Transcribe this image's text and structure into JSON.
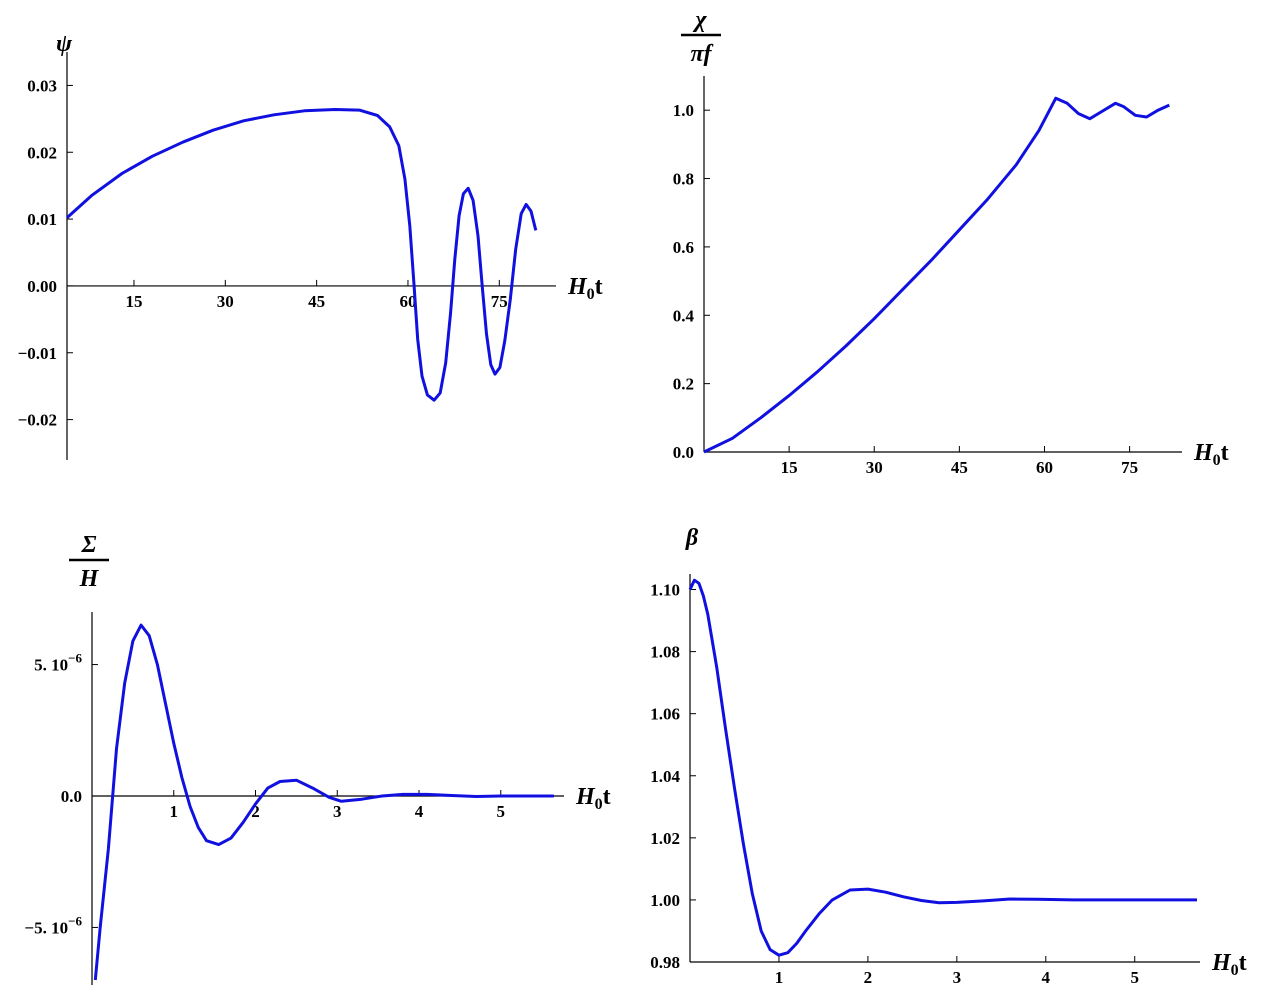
{
  "chart_data": [
    {
      "type": "line",
      "ylabel": "ψ",
      "xlabel_main": "H",
      "xlabel_sub": "0",
      "xlabel_tail": "t",
      "xticks": [
        "15",
        "30",
        "45",
        "60",
        "75"
      ],
      "yticks": [
        "0.03",
        "0.02",
        "0.01",
        "0.00",
        "−0.01",
        "−0.02"
      ],
      "xlim": [
        4,
        83
      ],
      "ylim": [
        -0.025,
        0.035
      ],
      "color": "#1010e0",
      "series": [
        {
          "x": [
            4,
            8,
            13,
            18,
            23,
            28,
            33,
            38,
            43,
            48,
            52,
            55,
            57,
            58.5,
            59.5,
            60.3,
            61,
            61.6,
            62.3,
            63.2,
            64.3,
            65.3,
            66.2,
            67,
            67.7,
            68.4,
            69.1,
            69.9,
            70.7,
            71.5,
            72.2,
            72.9,
            73.6,
            74.3,
            75.1,
            75.9,
            76.8,
            77.7,
            78.6,
            79.4,
            80.2,
            81
          ],
          "y": [
            0.0102,
            0.0135,
            0.0168,
            0.0194,
            0.0215,
            0.0233,
            0.0247,
            0.0256,
            0.0262,
            0.0264,
            0.0263,
            0.0255,
            0.0238,
            0.021,
            0.016,
            0.009,
            0.0,
            -0.008,
            -0.0135,
            -0.0163,
            -0.0171,
            -0.016,
            -0.0115,
            -0.004,
            0.004,
            0.0105,
            0.0138,
            0.0146,
            0.0128,
            0.0075,
            0.0,
            -0.0072,
            -0.0118,
            -0.0132,
            -0.0122,
            -0.0082,
            -0.002,
            0.0055,
            0.0108,
            0.0122,
            0.0112,
            0.0083
          ]
        }
      ]
    },
    {
      "type": "line",
      "ylabel_num": "χ",
      "ylabel_den": "πf",
      "xlabel_main": "H",
      "xlabel_sub": "0",
      "xlabel_tail": "t",
      "xticks": [
        "15",
        "30",
        "45",
        "60",
        "75"
      ],
      "yticks": [
        "1.0",
        "0.8",
        "0.6",
        "0.4",
        "0.2",
        "0.0"
      ],
      "xlim": [
        0,
        83
      ],
      "ylim": [
        0,
        1.1
      ],
      "color": "#1010e0",
      "series": [
        {
          "x": [
            0,
            5,
            10,
            15,
            20,
            25,
            30,
            35,
            40,
            45,
            50,
            55,
            59,
            62,
            64,
            66,
            68,
            70,
            72.5,
            74,
            76,
            78,
            80,
            82
          ],
          "y": [
            0.0,
            0.04,
            0.1,
            0.165,
            0.235,
            0.31,
            0.39,
            0.475,
            0.56,
            0.65,
            0.74,
            0.84,
            0.94,
            1.035,
            1.02,
            0.99,
            0.975,
            0.995,
            1.02,
            1.01,
            0.985,
            0.98,
            1.0,
            1.015
          ]
        }
      ]
    },
    {
      "type": "line",
      "ylabel_num": "Σ",
      "ylabel_den": "H",
      "xlabel_main": "H",
      "xlabel_sub": "0",
      "xlabel_tail": "t",
      "xticks": [
        "1",
        "2",
        "3",
        "4",
        "5"
      ],
      "yticks": [
        {
          "mant": "5. 10",
          "exp": "−6",
          "value": 5e-06
        },
        {
          "mant": "0.0",
          "exp": "",
          "value": 0
        },
        {
          "mant": "−5. 10",
          "exp": "−6",
          "value": -5e-06
        }
      ],
      "xlim": [
        0,
        5.7
      ],
      "ylim": [
        -7e-06,
        7e-06
      ],
      "color": "#1010e0",
      "series": [
        {
          "x": [
            0.04,
            0.1,
            0.2,
            0.3,
            0.4,
            0.5,
            0.6,
            0.7,
            0.8,
            0.9,
            1.0,
            1.1,
            1.2,
            1.3,
            1.4,
            1.55,
            1.7,
            1.85,
            2.0,
            2.15,
            2.3,
            2.5,
            2.7,
            2.9,
            3.05,
            3.3,
            3.55,
            3.8,
            4.1,
            4.4,
            4.7,
            5.0,
            5.3,
            5.65
          ],
          "y": [
            -7e-06,
            -5e-06,
            -2e-06,
            1.8e-06,
            4.3e-06,
            5.9e-06,
            6.5e-06,
            6.1e-06,
            5e-06,
            3.5e-06,
            2e-06,
            7e-07,
            -4e-07,
            -1.2e-06,
            -1.7e-06,
            -1.85e-06,
            -1.6e-06,
            -1e-06,
            -3e-07,
            3e-07,
            5.5e-07,
            6e-07,
            3e-07,
            -5e-08,
            -2e-07,
            -1.2e-07,
            0.0,
            6e-08,
            6e-08,
            2e-08,
            -2e-08,
            0.0,
            0.0,
            0.0
          ]
        }
      ]
    },
    {
      "type": "line",
      "ylabel": "β",
      "xlabel_main": "H",
      "xlabel_sub": "0",
      "xlabel_tail": "t",
      "xticks": [
        "1",
        "2",
        "3",
        "4",
        "5"
      ],
      "yticks": [
        "1.10",
        "1.08",
        "1.06",
        "1.04",
        "1.02",
        "1.00",
        "0.98"
      ],
      "xlim": [
        0,
        5.7
      ],
      "ylim": [
        0.98,
        1.105
      ],
      "color": "#1010e0",
      "series": [
        {
          "x": [
            0.0,
            0.05,
            0.1,
            0.15,
            0.2,
            0.3,
            0.4,
            0.5,
            0.6,
            0.7,
            0.8,
            0.9,
            1.0,
            1.1,
            1.2,
            1.3,
            1.45,
            1.6,
            1.8,
            2.0,
            2.2,
            2.4,
            2.6,
            2.8,
            3.0,
            3.3,
            3.6,
            3.9,
            4.3,
            4.8,
            5.3,
            5.7
          ],
          "y": [
            1.1,
            1.103,
            1.102,
            1.098,
            1.092,
            1.075,
            1.055,
            1.036,
            1.018,
            1.002,
            0.99,
            0.984,
            0.9822,
            0.983,
            0.986,
            0.99,
            0.9955,
            1.0,
            1.0032,
            1.0035,
            1.0025,
            1.001,
            0.9998,
            0.9991,
            0.9992,
            0.9997,
            1.0003,
            1.0002,
            1.0,
            1.0,
            1.0,
            1.0
          ]
        }
      ]
    }
  ]
}
